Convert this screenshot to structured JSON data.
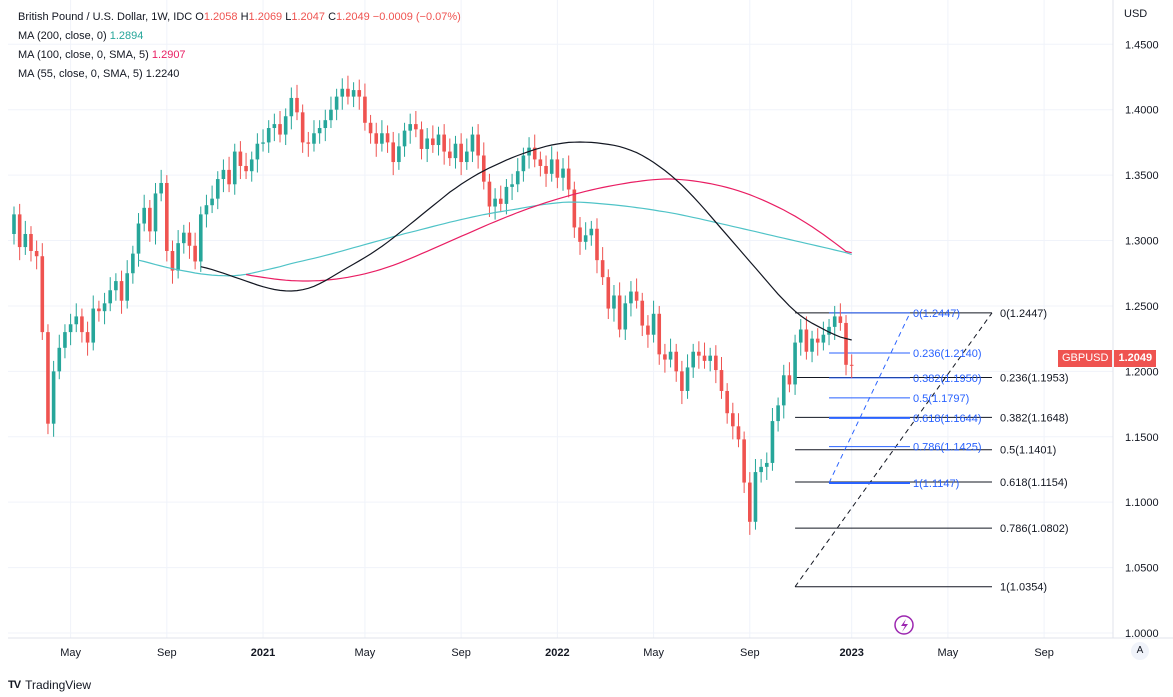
{
  "header": {
    "symbol": "British Pound / U.S. Dollar, 1W, IDC",
    "open_label": "O",
    "open": "1.2058",
    "high_label": "H",
    "high": "1.2069",
    "low_label": "L",
    "low": "1.2047",
    "close_label": "C",
    "close": "1.2049",
    "change": "−0.0009 (−0.07%)",
    "ma200_label": "MA (200, close, 0)",
    "ma200_value": "1.2894",
    "ma100_label": "MA (100, close, 0, SMA, 5)",
    "ma100_value": "1.2907",
    "ma55_label": "MA (55, close, 0, SMA, 5)",
    "ma55_value": "1.2240"
  },
  "currency": "USD",
  "price_tag": {
    "symbol": "GBPUSD",
    "value": "1.2049"
  },
  "footer": {
    "brand": "TradingView",
    "logo": "TV"
  },
  "scale_button": "A",
  "colors": {
    "up": "#26a69a",
    "down": "#ef5350",
    "ma200": "#4fc3c7",
    "ma100": "#e91e63",
    "ma55": "#131722",
    "fib_blue": "#2962ff"
  },
  "chart_data": {
    "type": "candlestick",
    "ylim": [
      1.0,
      1.4594
    ],
    "yticks": [
      "1.0000",
      "1.0500",
      "1.1000",
      "1.1500",
      "1.2000",
      "1.2500",
      "1.3000",
      "1.3500",
      "1.4000",
      "1.4500"
    ],
    "xticks": [
      {
        "label": "May",
        "i": 10
      },
      {
        "label": "Sep",
        "i": 27
      },
      {
        "label": "2021",
        "i": 44
      },
      {
        "label": "May",
        "i": 62
      },
      {
        "label": "Sep",
        "i": 79
      },
      {
        "label": "2022",
        "i": 96
      },
      {
        "label": "May",
        "i": 113
      },
      {
        "label": "Sep",
        "i": 130
      },
      {
        "label": "2023",
        "i": 148
      },
      {
        "label": "May",
        "i": 165
      },
      {
        "label": "Sep",
        "i": 182
      }
    ],
    "closes": [
      1.32,
      1.295,
      1.305,
      1.292,
      1.288,
      1.23,
      1.16,
      1.2,
      1.218,
      1.23,
      1.236,
      1.242,
      1.23,
      1.222,
      1.248,
      1.246,
      1.252,
      1.262,
      1.269,
      1.254,
      1.275,
      1.29,
      1.313,
      1.325,
      1.307,
      1.336,
      1.344,
      1.292,
      1.277,
      1.298,
      1.306,
      1.296,
      1.284,
      1.32,
      1.327,
      1.332,
      1.347,
      1.354,
      1.343,
      1.368,
      1.357,
      1.353,
      1.362,
      1.374,
      1.375,
      1.386,
      1.389,
      1.381,
      1.395,
      1.409,
      1.398,
      1.375,
      1.374,
      1.382,
      1.386,
      1.392,
      1.4,
      1.41,
      1.416,
      1.41,
      1.415,
      1.41,
      1.39,
      1.382,
      1.374,
      1.382,
      1.375,
      1.36,
      1.372,
      1.384,
      1.389,
      1.385,
      1.37,
      1.378,
      1.373,
      1.381,
      1.368,
      1.363,
      1.374,
      1.36,
      1.368,
      1.381,
      1.365,
      1.345,
      1.326,
      1.332,
      1.328,
      1.341,
      1.343,
      1.353,
      1.365,
      1.371,
      1.362,
      1.357,
      1.351,
      1.362,
      1.348,
      1.355,
      1.339,
      1.31,
      1.299,
      1.304,
      1.309,
      1.285,
      1.272,
      1.248,
      1.258,
      1.232,
      1.252,
      1.261,
      1.254,
      1.235,
      1.228,
      1.244,
      1.213,
      1.209,
      1.215,
      1.2,
      1.185,
      1.203,
      1.215,
      1.212,
      1.208,
      1.212,
      1.201,
      1.185,
      1.168,
      1.158,
      1.148,
      1.115,
      1.085,
      1.123,
      1.127,
      1.13,
      1.162,
      1.174,
      1.197,
      1.19,
      1.222,
      1.232,
      1.215,
      1.225,
      1.222,
      1.228,
      1.234,
      1.242,
      1.237,
      1.205,
      1.2049
    ],
    "ma200": [
      1.285,
      1.284,
      1.2828,
      1.2816,
      1.2805,
      1.2795,
      1.2785,
      1.2776,
      1.2768,
      1.276,
      1.2752,
      1.2745,
      1.274,
      1.2736,
      1.2733,
      1.2731,
      1.273,
      1.2732,
      1.2736,
      1.2742,
      1.275,
      1.276,
      1.277,
      1.278,
      1.279,
      1.28,
      1.2812,
      1.2824,
      1.2834,
      1.2844,
      1.2854,
      1.2864,
      1.2875,
      1.2886,
      1.2897,
      1.2909,
      1.2921,
      1.2933,
      1.2945,
      1.2957,
      1.2969,
      1.2981,
      1.2993,
      1.3005,
      1.3017,
      1.3029,
      1.304,
      1.3052,
      1.3063,
      1.3074,
      1.3085,
      1.3096,
      1.3107,
      1.3118,
      1.3129,
      1.314,
      1.315,
      1.316,
      1.317,
      1.318,
      1.3189,
      1.3198,
      1.3206,
      1.3214,
      1.3221,
      1.3228,
      1.3235,
      1.3242,
      1.325,
      1.3258,
      1.3265,
      1.3272,
      1.3278,
      1.3283,
      1.3288,
      1.3292,
      1.3294,
      1.3294,
      1.3293,
      1.3291,
      1.3288,
      1.3284,
      1.328,
      1.3276,
      1.3272,
      1.3268,
      1.3263,
      1.3258,
      1.3252,
      1.3246,
      1.324,
      1.3233,
      1.3226,
      1.322,
      1.3212,
      1.3204,
      1.3195,
      1.3186,
      1.3177,
      1.3168,
      1.3158,
      1.3148,
      1.3138,
      1.3128,
      1.3118,
      1.3108,
      1.3098,
      1.3088,
      1.3078,
      1.3068,
      1.3058,
      1.3048,
      1.3038,
      1.3028,
      1.3018,
      1.3008,
      1.2998,
      1.2988,
      1.2978,
      1.2968,
      1.2958,
      1.2948,
      1.2938,
      1.2928,
      1.2918,
      1.2907,
      1.2894
    ],
    "ma100": [
      1.274,
      1.2732,
      1.2725,
      1.2718,
      1.2712,
      1.2706,
      1.2701,
      1.2697,
      1.2694,
      1.2692,
      1.2691,
      1.2691,
      1.2692,
      1.2694,
      1.2697,
      1.2701,
      1.2706,
      1.2712,
      1.2719,
      1.2727,
      1.2736,
      1.2746,
      1.2757,
      1.2769,
      1.2782,
      1.2796,
      1.2811,
      1.2827,
      1.2844,
      1.2862,
      1.288,
      1.2899,
      1.2918,
      1.2937,
      1.2956,
      1.2975,
      1.2994,
      1.3013,
      1.3032,
      1.3051,
      1.307,
      1.3089,
      1.3108,
      1.3126,
      1.3144,
      1.3162,
      1.318,
      1.3197,
      1.3214,
      1.323,
      1.3246,
      1.3261,
      1.3276,
      1.329,
      1.3304,
      1.3317,
      1.333,
      1.3342,
      1.3354,
      1.3365,
      1.3376,
      1.3386,
      1.3396,
      1.3405,
      1.3414,
      1.3422,
      1.343,
      1.3437,
      1.3444,
      1.345,
      1.3456,
      1.3461,
      1.3465,
      1.3468,
      1.347,
      1.347,
      1.3468,
      1.3465,
      1.3461,
      1.3456,
      1.345,
      1.3443,
      1.3435,
      1.3426,
      1.3416,
      1.3405,
      1.3393,
      1.338,
      1.3366,
      1.335,
      1.3333,
      1.3315,
      1.3296,
      1.3276,
      1.3255,
      1.3233,
      1.321,
      1.3186,
      1.316,
      1.3133,
      1.3105,
      1.3076,
      1.3046,
      1.3015,
      1.2983,
      1.295,
      1.2916,
      1.2907
    ],
    "ma55": [
      1.28,
      1.279,
      1.2778,
      1.2764,
      1.275,
      1.2735,
      1.272,
      1.2705,
      1.269,
      1.2675,
      1.266,
      1.2647,
      1.2636,
      1.2626,
      1.2619,
      1.2615,
      1.2614,
      1.2617,
      1.2624,
      1.2635,
      1.265,
      1.267,
      1.2693,
      1.2718,
      1.2744,
      1.277,
      1.2795,
      1.282,
      1.2845,
      1.287,
      1.2897,
      1.2925,
      1.2955,
      1.2987,
      1.302,
      1.3055,
      1.309,
      1.3125,
      1.316,
      1.3195,
      1.323,
      1.3265,
      1.33,
      1.3335,
      1.337,
      1.34,
      1.343,
      1.3458,
      1.3485,
      1.351,
      1.3533,
      1.3555,
      1.3575,
      1.3595,
      1.3615,
      1.3633,
      1.365,
      1.3666,
      1.3681,
      1.3695,
      1.3708,
      1.372,
      1.373,
      1.3738,
      1.3745,
      1.375,
      1.3752,
      1.3753,
      1.3752,
      1.375,
      1.3746,
      1.3741,
      1.3735,
      1.3728,
      1.3718,
      1.3705,
      1.369,
      1.3672,
      1.365,
      1.3625,
      1.3597,
      1.3567,
      1.3535,
      1.35,
      1.3463,
      1.3423,
      1.338,
      1.3335,
      1.3288,
      1.324,
      1.319,
      1.314,
      1.309,
      1.304,
      1.299,
      1.294,
      1.289,
      1.284,
      1.279,
      1.274,
      1.269,
      1.264,
      1.259,
      1.2545,
      1.25,
      1.246,
      1.2425,
      1.2395,
      1.2368,
      1.2345,
      1.2322,
      1.23,
      1.228,
      1.2262,
      1.225,
      1.224
    ],
    "fib_right": [
      {
        "label": "0(1.2447)",
        "price": 1.2447
      },
      {
        "label": "0.236(1.1953)",
        "price": 1.1953
      },
      {
        "label": "0.382(1.1648)",
        "price": 1.1648
      },
      {
        "label": "0.5(1.1401)",
        "price": 1.1401
      },
      {
        "label": "0.618(1.1154)",
        "price": 1.1154
      },
      {
        "label": "0.786(1.0802)",
        "price": 1.0802
      },
      {
        "label": "1(1.0354)",
        "price": 1.0354
      }
    ],
    "fib_blue": [
      {
        "label": "0(1.2447)",
        "price": 1.2447
      },
      {
        "label": "0.236(1.2140)",
        "price": 1.214
      },
      {
        "label": "0.382(1.1950)",
        "price": 1.195
      },
      {
        "label": "0.5(1.1797)",
        "price": 1.1797
      },
      {
        "label": "0.618(1.1644)",
        "price": 1.1644
      },
      {
        "label": "0.786(1.1425)",
        "price": 1.1425
      },
      {
        "label": "1(1.1147)",
        "price": 1.1147
      }
    ]
  }
}
